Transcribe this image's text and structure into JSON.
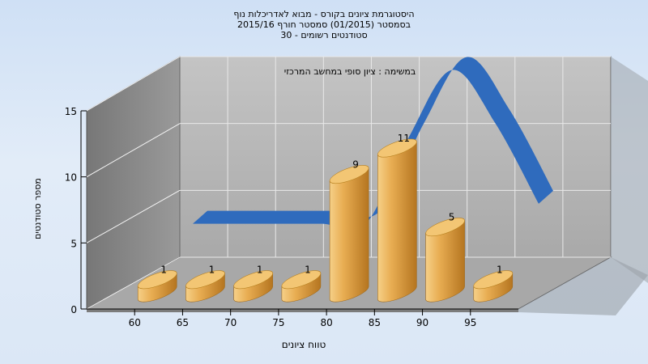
{
  "chart_data": {
    "type": "bar",
    "title_lines": [
      "היסטוגרמת ציונים בקורס - מבוא לאדריכלות נוף",
      "בסמסטר  (01/2015)  סמסטר חורף 2015/16",
      "סטודנטים רשומים - 30"
    ],
    "subtitle": "במשימה : ציון סופי במחשב המרכזי",
    "xlabel": "טווח ציונים",
    "ylabel": "מספר סטודנטים",
    "categories": [
      "60",
      "65",
      "70",
      "75",
      "80",
      "85",
      "90",
      "95"
    ],
    "values": [
      1,
      1,
      1,
      1,
      9,
      11,
      5,
      1
    ],
    "y_ticks": [
      "0",
      "5",
      "10",
      "15"
    ],
    "ylim": [
      0,
      15
    ],
    "grid": true,
    "curve_values": [
      2.5,
      2.5,
      2.5,
      2.5,
      2.5,
      9,
      14,
      10,
      4
    ]
  },
  "colors": {
    "bar_light": "#f7d79a",
    "bar_mid": "#e3a64a",
    "bar_dark": "#b97a22",
    "curve": "#2f6bbd",
    "back_wall": "#b5b5b5",
    "side_wall": "#8b8b8b",
    "floor": "#a9a9a9"
  }
}
